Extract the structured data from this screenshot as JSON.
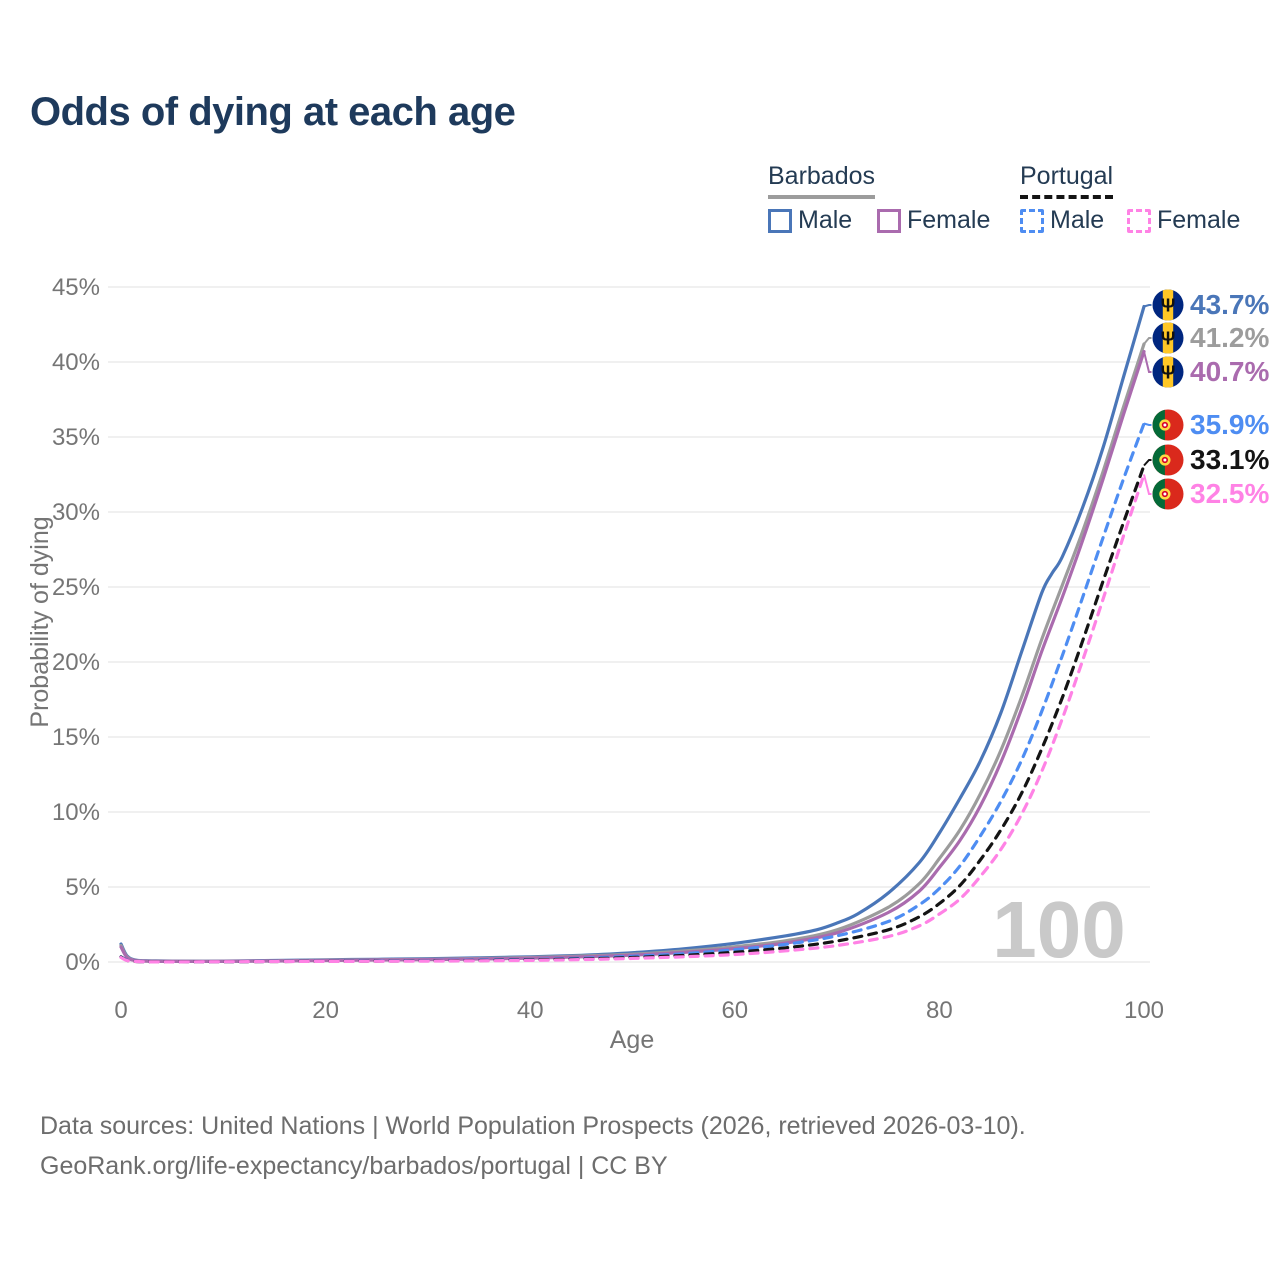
{
  "title": "Odds of dying at each age",
  "watermark": "100",
  "legend": {
    "barbados": {
      "country": "Barbados",
      "male": "Male",
      "female": "Female"
    },
    "portugal": {
      "country": "Portugal",
      "male": "Male",
      "female": "Female"
    }
  },
  "icons": {
    "barbados_trident": "Ψ"
  },
  "footer": {
    "line1": "Data sources: United Nations | World Population Prospects (2026, retrieved 2026-03-10).",
    "line2": "GeoRank.org/life-expectancy/barbados/portugal | CC BY"
  },
  "chart_data": {
    "type": "line",
    "title": "Odds of dying at each age",
    "xlabel": "Age",
    "ylabel": "Probability of dying",
    "xlim": [
      0,
      100
    ],
    "ylim": [
      0,
      45
    ],
    "x_ticks": [
      0,
      20,
      40,
      60,
      80,
      100
    ],
    "y_ticks": [
      "0%",
      "5%",
      "10%",
      "15%",
      "20%",
      "25%",
      "30%",
      "35%",
      "40%",
      "45%"
    ],
    "grid": "horizontal",
    "legend_position": "top-right",
    "units": "percent",
    "series": [
      {
        "name": "Barbados Male",
        "country": "Barbados",
        "sex": "Male",
        "color": "#4a76b8",
        "label_color": "#4a76b8",
        "dashed": false,
        "flag": "barbados",
        "end_label": "43.7%",
        "end_value": 43.7,
        "points": [
          [
            0,
            1.2
          ],
          [
            0.6,
            0.4
          ],
          [
            1.5,
            0.12
          ],
          [
            3,
            0.08
          ],
          [
            5,
            0.06
          ],
          [
            10,
            0.06
          ],
          [
            15,
            0.1
          ],
          [
            20,
            0.15
          ],
          [
            25,
            0.18
          ],
          [
            30,
            0.22
          ],
          [
            35,
            0.28
          ],
          [
            40,
            0.35
          ],
          [
            45,
            0.45
          ],
          [
            50,
            0.62
          ],
          [
            55,
            0.88
          ],
          [
            60,
            1.25
          ],
          [
            65,
            1.75
          ],
          [
            68,
            2.15
          ],
          [
            70,
            2.6
          ],
          [
            72,
            3.2
          ],
          [
            75,
            4.6
          ],
          [
            78,
            6.6
          ],
          [
            80,
            8.6
          ],
          [
            82,
            10.9
          ],
          [
            84,
            13.4
          ],
          [
            86,
            16.6
          ],
          [
            88,
            20.6
          ],
          [
            90,
            24.6
          ],
          [
            91,
            25.9
          ],
          [
            92,
            27.0
          ],
          [
            94,
            30.3
          ],
          [
            96,
            34.3
          ],
          [
            98,
            39.0
          ],
          [
            100,
            43.7
          ]
        ]
      },
      {
        "name": "Barbados Both sexes",
        "country": "Barbados",
        "sex": "Both",
        "color": "#9c9c9c",
        "label_color": "#9c9c9c",
        "dashed": false,
        "flag": "barbados",
        "end_label": "41.2%",
        "end_value": 41.2,
        "points": [
          [
            0,
            1.1
          ],
          [
            0.6,
            0.35
          ],
          [
            1.5,
            0.1
          ],
          [
            3,
            0.06
          ],
          [
            5,
            0.05
          ],
          [
            10,
            0.05
          ],
          [
            15,
            0.08
          ],
          [
            20,
            0.12
          ],
          [
            25,
            0.15
          ],
          [
            30,
            0.18
          ],
          [
            35,
            0.23
          ],
          [
            40,
            0.3
          ],
          [
            45,
            0.4
          ],
          [
            50,
            0.52
          ],
          [
            55,
            0.73
          ],
          [
            60,
            1.02
          ],
          [
            65,
            1.42
          ],
          [
            70,
            2.15
          ],
          [
            75,
            3.65
          ],
          [
            78,
            5.2
          ],
          [
            80,
            6.9
          ],
          [
            82,
            8.8
          ],
          [
            84,
            11.2
          ],
          [
            86,
            14.1
          ],
          [
            88,
            17.6
          ],
          [
            90,
            21.5
          ],
          [
            92,
            25.1
          ],
          [
            94,
            28.7
          ],
          [
            96,
            32.7
          ],
          [
            98,
            37.0
          ],
          [
            100,
            41.2
          ]
        ]
      },
      {
        "name": "Barbados Female",
        "country": "Barbados",
        "sex": "Female",
        "color": "#aa6bae",
        "label_color": "#aa6bae",
        "dashed": false,
        "flag": "barbados",
        "end_label": "40.7%",
        "end_value": 40.7,
        "points": [
          [
            0,
            1.0
          ],
          [
            0.6,
            0.3
          ],
          [
            1.5,
            0.09
          ],
          [
            3,
            0.05
          ],
          [
            5,
            0.04
          ],
          [
            10,
            0.04
          ],
          [
            15,
            0.07
          ],
          [
            20,
            0.1
          ],
          [
            25,
            0.13
          ],
          [
            30,
            0.16
          ],
          [
            35,
            0.2
          ],
          [
            40,
            0.26
          ],
          [
            45,
            0.35
          ],
          [
            50,
            0.46
          ],
          [
            55,
            0.64
          ],
          [
            60,
            0.9
          ],
          [
            65,
            1.27
          ],
          [
            70,
            1.95
          ],
          [
            75,
            3.3
          ],
          [
            78,
            4.7
          ],
          [
            80,
            6.3
          ],
          [
            82,
            8.1
          ],
          [
            84,
            10.4
          ],
          [
            86,
            13.3
          ],
          [
            88,
            16.8
          ],
          [
            90,
            20.7
          ],
          [
            92,
            24.3
          ],
          [
            94,
            28.1
          ],
          [
            96,
            32.2
          ],
          [
            98,
            36.5
          ],
          [
            100,
            40.7
          ]
        ]
      },
      {
        "name": "Portugal Male",
        "country": "Portugal",
        "sex": "Male",
        "color": "#4e8df2",
        "label_color": "#4e8df2",
        "dashed": true,
        "flag": "portugal",
        "end_label": "35.9%",
        "end_value": 35.9,
        "points": [
          [
            0,
            0.35
          ],
          [
            0.6,
            0.12
          ],
          [
            1.5,
            0.04
          ],
          [
            3,
            0.02
          ],
          [
            5,
            0.02
          ],
          [
            10,
            0.02
          ],
          [
            15,
            0.04
          ],
          [
            20,
            0.06
          ],
          [
            25,
            0.08
          ],
          [
            30,
            0.1
          ],
          [
            35,
            0.13
          ],
          [
            40,
            0.17
          ],
          [
            45,
            0.25
          ],
          [
            50,
            0.38
          ],
          [
            55,
            0.55
          ],
          [
            60,
            0.82
          ],
          [
            65,
            1.18
          ],
          [
            70,
            1.75
          ],
          [
            75,
            2.7
          ],
          [
            78,
            3.8
          ],
          [
            80,
            4.9
          ],
          [
            82,
            6.4
          ],
          [
            84,
            8.4
          ],
          [
            86,
            10.7
          ],
          [
            88,
            13.4
          ],
          [
            90,
            16.7
          ],
          [
            92,
            20.4
          ],
          [
            94,
            24.3
          ],
          [
            96,
            28.3
          ],
          [
            98,
            32.2
          ],
          [
            100,
            35.9
          ]
        ]
      },
      {
        "name": "Portugal Both sexes",
        "country": "Portugal",
        "sex": "Both",
        "color": "#141414",
        "label_color": "#141414",
        "dashed": true,
        "flag": "portugal",
        "end_label": "33.1%",
        "end_value": 33.1,
        "points": [
          [
            0,
            0.33
          ],
          [
            0.6,
            0.11
          ],
          [
            1.5,
            0.03
          ],
          [
            3,
            0.02
          ],
          [
            5,
            0.02
          ],
          [
            10,
            0.02
          ],
          [
            15,
            0.03
          ],
          [
            20,
            0.05
          ],
          [
            25,
            0.06
          ],
          [
            30,
            0.08
          ],
          [
            35,
            0.1
          ],
          [
            40,
            0.14
          ],
          [
            45,
            0.2
          ],
          [
            50,
            0.3
          ],
          [
            55,
            0.44
          ],
          [
            60,
            0.65
          ],
          [
            65,
            0.95
          ],
          [
            70,
            1.4
          ],
          [
            75,
            2.15
          ],
          [
            78,
            3.0
          ],
          [
            80,
            3.9
          ],
          [
            82,
            5.1
          ],
          [
            84,
            6.8
          ],
          [
            86,
            8.8
          ],
          [
            88,
            11.2
          ],
          [
            90,
            14.2
          ],
          [
            92,
            17.6
          ],
          [
            94,
            21.4
          ],
          [
            96,
            25.4
          ],
          [
            98,
            29.3
          ],
          [
            100,
            33.1
          ]
        ]
      },
      {
        "name": "Portugal Female",
        "country": "Portugal",
        "sex": "Female",
        "color": "#ff82e5",
        "label_color": "#ff82e5",
        "dashed": true,
        "flag": "portugal",
        "end_label": "32.5%",
        "end_value": 32.5,
        "points": [
          [
            0,
            0.3
          ],
          [
            0.6,
            0.1
          ],
          [
            1.5,
            0.03
          ],
          [
            3,
            0.01
          ],
          [
            5,
            0.01
          ],
          [
            10,
            0.02
          ],
          [
            15,
            0.03
          ],
          [
            20,
            0.04
          ],
          [
            25,
            0.05
          ],
          [
            30,
            0.06
          ],
          [
            35,
            0.08
          ],
          [
            40,
            0.11
          ],
          [
            45,
            0.16
          ],
          [
            50,
            0.24
          ],
          [
            55,
            0.35
          ],
          [
            60,
            0.5
          ],
          [
            65,
            0.75
          ],
          [
            70,
            1.1
          ],
          [
            75,
            1.7
          ],
          [
            78,
            2.4
          ],
          [
            80,
            3.2
          ],
          [
            82,
            4.2
          ],
          [
            84,
            5.7
          ],
          [
            86,
            7.5
          ],
          [
            88,
            9.8
          ],
          [
            90,
            12.7
          ],
          [
            92,
            16.2
          ],
          [
            94,
            20.1
          ],
          [
            96,
            24.2
          ],
          [
            98,
            28.4
          ],
          [
            100,
            32.5
          ]
        ]
      }
    ]
  }
}
